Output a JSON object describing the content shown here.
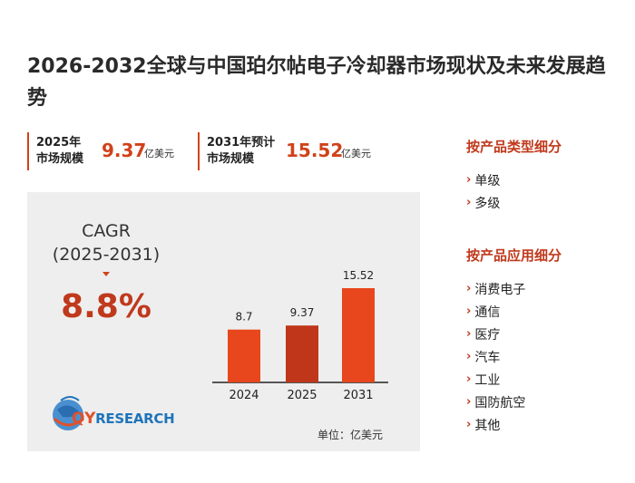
{
  "title": "2026-2032全球与中国珀尔帖电子冷却器市场现状及未来发展趋势",
  "stats": [
    {
      "label_line1": "2025年",
      "label_line2": "市场规模",
      "value": "9.37",
      "unit": "亿美元"
    },
    {
      "label_line1": "2031年预计",
      "label_line2": "市场规模",
      "value": "15.52",
      "unit": "亿美元"
    }
  ],
  "cagr": {
    "label": "CAGR",
    "period": "(2025-2031)",
    "value": "8.8%"
  },
  "logo": {
    "prefix": "QY",
    "suffix": "RESEARCH"
  },
  "unit_note": "单位：亿美元",
  "colors": {
    "accent": "#d0421b",
    "bar": "#e8461c",
    "bar_highlight": "#c0361a",
    "panel": "#eeeeee"
  },
  "chart_data": {
    "type": "bar",
    "categories": [
      "2024",
      "2025",
      "2031"
    ],
    "values": [
      8.7,
      9.37,
      15.52
    ],
    "value_labels": [
      "8.7",
      "9.37",
      "15.52"
    ],
    "title": "",
    "xlabel": "",
    "ylabel": "",
    "ylim": [
      0,
      15.52
    ],
    "grid": false,
    "legend": "none"
  },
  "sidebar": {
    "type_title": "按产品类型细分",
    "type_items": [
      "单级",
      "多级"
    ],
    "app_title": "按产品应用细分",
    "app_items": [
      "消费电子",
      "通信",
      "医疗",
      "汽车",
      "工业",
      "国防航空",
      "其他"
    ]
  }
}
